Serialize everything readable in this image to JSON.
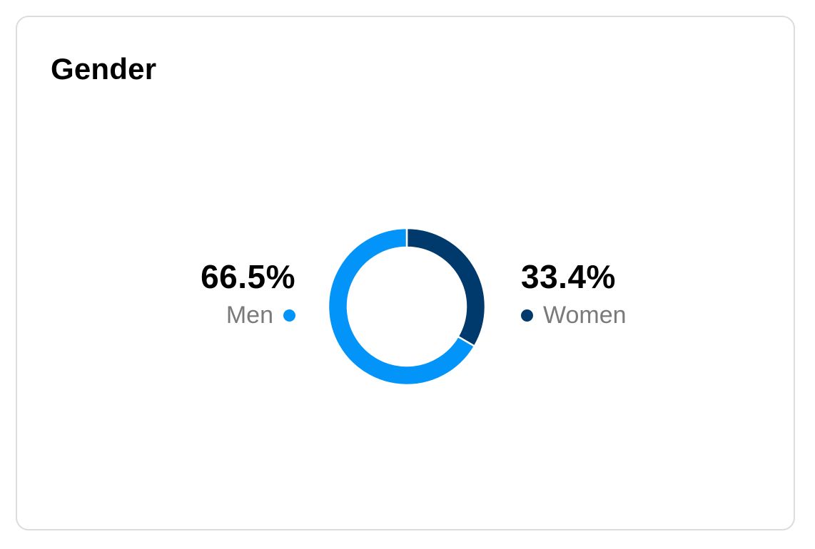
{
  "card": {
    "title": "Gender"
  },
  "colors": {
    "men": "#0294f8",
    "women": "#00396c",
    "label_gray": "#7a7a7a"
  },
  "chart_data": {
    "type": "pie",
    "variant": "donut",
    "title": "Gender",
    "series": [
      {
        "name": "Men",
        "value": 66.5,
        "label": "66.5%",
        "color": "#0294f8"
      },
      {
        "name": "Women",
        "value": 33.4,
        "label": "33.4%",
        "color": "#00396c"
      }
    ],
    "legend": "side"
  }
}
